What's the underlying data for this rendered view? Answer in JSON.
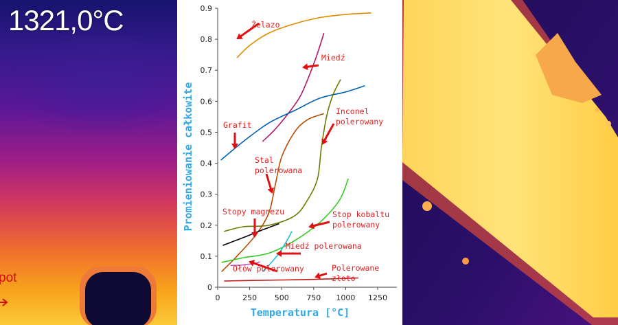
{
  "left_panel": {
    "temperature_readout": "1321,0°C",
    "spot_label": "pot"
  },
  "chart_data": {
    "type": "line",
    "xlabel": "Temperatura [°C]",
    "ylabel": "Promieniowanie całkowite",
    "xlim": [
      0,
      1400
    ],
    "ylim": [
      0,
      0.9
    ],
    "xticks": [
      0,
      250,
      500,
      750,
      1000,
      1250
    ],
    "yticks": [
      0,
      0.1,
      0.2,
      0.3,
      0.4,
      0.5,
      0.6,
      0.7,
      0.8,
      0.9
    ],
    "xtick_labels": [
      "0",
      "250",
      "500",
      "750",
      "1000",
      "1250"
    ],
    "ytick_labels": [
      "0",
      "0.1",
      "0.2",
      "0.3",
      "0.4",
      "0.5",
      "0.6",
      "0.7",
      "0.8",
      "0.9"
    ],
    "grid": false,
    "series": [
      {
        "label": "Żelazo",
        "color": "#e08a00",
        "x": [
          150,
          250,
          400,
          600,
          800,
          1000,
          1200
        ],
        "y": [
          0.74,
          0.78,
          0.82,
          0.85,
          0.87,
          0.88,
          0.885
        ]
      },
      {
        "label": "Miedź",
        "color": "#b0186a",
        "x": [
          350,
          450,
          550,
          650,
          750,
          800,
          830
        ],
        "y": [
          0.47,
          0.51,
          0.56,
          0.62,
          0.72,
          0.78,
          0.82
        ]
      },
      {
        "label": "Grafit",
        "color": "#0060b0",
        "x": [
          25,
          200,
          400,
          600,
          800,
          1000,
          1150
        ],
        "y": [
          0.41,
          0.47,
          0.53,
          0.57,
          0.61,
          0.63,
          0.65
        ]
      },
      {
        "label": "Inconel polerowany",
        "color": "#6f7a00",
        "x": [
          50,
          200,
          400,
          600,
          700,
          780,
          810,
          850,
          900,
          960
        ],
        "y": [
          0.18,
          0.195,
          0.2,
          0.23,
          0.28,
          0.35,
          0.45,
          0.55,
          0.62,
          0.67
        ]
      },
      {
        "label": "Stal polerowana",
        "color": "#b84a00",
        "x": [
          30,
          150,
          300,
          400,
          450,
          500,
          600,
          700,
          830
        ],
        "y": [
          0.05,
          0.1,
          0.17,
          0.24,
          0.33,
          0.42,
          0.5,
          0.54,
          0.56
        ]
      },
      {
        "label": "Stopy magnezu",
        "color": "#000000",
        "x": [
          40,
          200,
          350,
          480
        ],
        "y": [
          0.135,
          0.16,
          0.185,
          0.205
        ]
      },
      {
        "label": "Stop kobaltu polerowany",
        "color": "#33cc22",
        "x": [
          30,
          200,
          400,
          600,
          800,
          950,
          1020
        ],
        "y": [
          0.08,
          0.095,
          0.11,
          0.15,
          0.21,
          0.28,
          0.35
        ]
      },
      {
        "label": "Miedź polerowana",
        "color": "#22c0e0",
        "x": [
          350,
          420,
          480,
          540,
          580
        ],
        "y": [
          0.05,
          0.08,
          0.11,
          0.15,
          0.18
        ]
      },
      {
        "label": "Ołów polerowany",
        "color": "#c050d0",
        "x": [
          100,
          200,
          300,
          330
        ],
        "y": [
          0.07,
          0.072,
          0.078,
          0.082
        ]
      },
      {
        "label": "Polerowane złoto",
        "color": "#c01818",
        "x": [
          50,
          300,
          600,
          900,
          1100
        ],
        "y": [
          0.02,
          0.022,
          0.024,
          0.027,
          0.03
        ]
      }
    ],
    "annotations": [
      {
        "text": "Żelazo",
        "lines": [
          "Żelazo"
        ]
      },
      {
        "text": "Miedź",
        "lines": [
          "Miedź"
        ]
      },
      {
        "text": "Grafit",
        "lines": [
          "Grafit"
        ]
      },
      {
        "text": "Inconel polerowany",
        "lines": [
          "Inconel",
          "polerowany"
        ]
      },
      {
        "text": "Stal polerowana",
        "lines": [
          "Stal",
          "polerowana"
        ]
      },
      {
        "text": "Stopy magnezu",
        "lines": [
          "Stopy magnezu"
        ]
      },
      {
        "text": "Stop kobaltu polerowany",
        "lines": [
          "Stop kobaltu",
          "polerowany"
        ]
      },
      {
        "text": "Miedź polerowana",
        "lines": [
          "Miedź polerowana"
        ]
      },
      {
        "text": "Ołów polerowany",
        "lines": [
          "Ołów polerowany"
        ]
      },
      {
        "text": "Polerowane złoto",
        "lines": [
          "Polerowane",
          "złoto"
        ]
      }
    ],
    "colors": {
      "axis_label": "#30a8e8",
      "annotation_text": "#e02020",
      "arrow": "#e01010"
    }
  }
}
